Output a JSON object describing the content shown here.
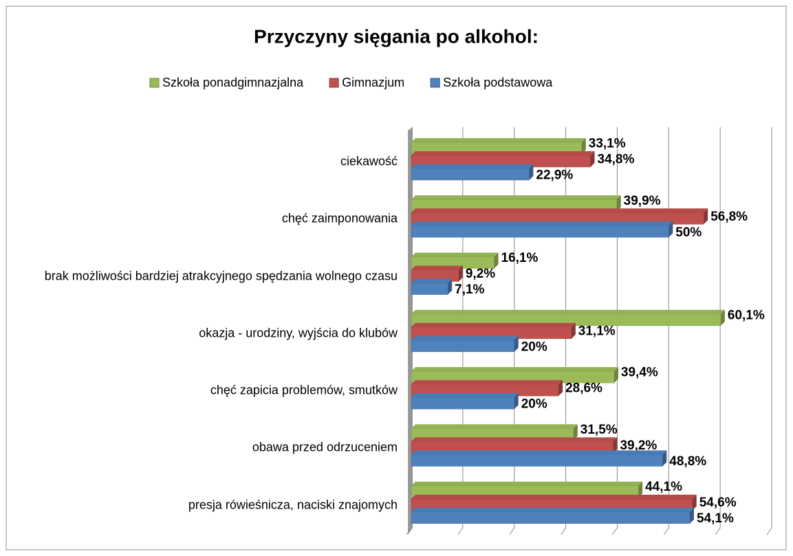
{
  "chart_data": {
    "type": "bar",
    "orientation": "horizontal",
    "title": "Przyczyny sięgania po alkohol:",
    "categories": [
      "ciekawość",
      "chęć zaimponowania",
      "brak możliwości bardziej atrakcyjnego spędzania wolnego czasu",
      "okazja - urodziny, wyjścia do klubów",
      "chęć zapicia problemów, smutków",
      "obawa przed odrzuceniem",
      "presja rówieśnicza, naciski znajomych"
    ],
    "series": [
      {
        "name": "Szkoła ponadgimnazjalna",
        "color": "#9bbb59",
        "values": [
          33.1,
          39.9,
          16.1,
          60.1,
          39.4,
          31.5,
          44.1
        ],
        "value_labels": [
          "33,1%",
          "39,9%",
          "16,1%",
          "60,1%",
          "39,4%",
          "31,5%",
          "44,1%"
        ]
      },
      {
        "name": "Gimnazjum",
        "color": "#c0504d",
        "values": [
          34.8,
          56.8,
          9.2,
          31.1,
          28.6,
          39.2,
          54.6
        ],
        "value_labels": [
          "34,8%",
          "56,8%",
          "9,2%",
          "31,1%",
          "28,6%",
          "39,2%",
          "54,6%"
        ]
      },
      {
        "name": "Szkoła podstawowa",
        "color": "#4f81bd",
        "values": [
          22.9,
          50,
          7.1,
          20,
          20,
          48.8,
          54.1
        ],
        "value_labels": [
          "22,9%",
          "50%",
          "7,1%",
          "20%",
          "20%",
          "48,8%",
          "54,1%"
        ]
      }
    ],
    "xlim": [
      0,
      70
    ],
    "xticks": [
      0,
      10,
      20,
      30,
      40,
      50,
      60,
      70
    ],
    "grid": true
  }
}
